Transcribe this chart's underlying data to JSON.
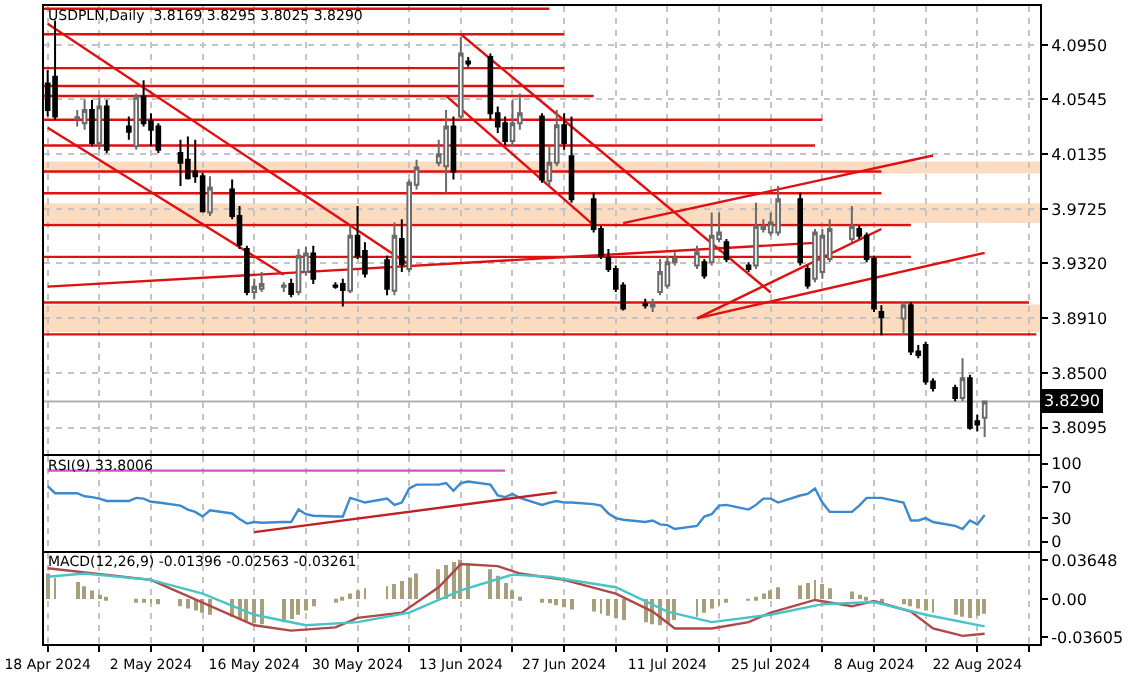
{
  "chart_data": [
    {
      "type": "candlestick",
      "title": "USDPLN,Daily  3.8169 3.8295 3.8025 3.8290",
      "grid": true,
      "tick_labels": "y",
      "x": [
        "2024-04-18",
        "2024-04-19",
        "2024-04-22",
        "2024-04-23",
        "2024-04-24",
        "2024-04-25",
        "2024-04-26",
        "2024-04-29",
        "2024-04-30",
        "2024-05-01",
        "2024-05-02",
        "2024-05-03",
        "2024-05-06",
        "2024-05-07",
        "2024-05-08",
        "2024-05-09",
        "2024-05-10",
        "2024-05-13",
        "2024-05-14",
        "2024-05-15",
        "2024-05-16",
        "2024-05-17",
        "2024-05-20",
        "2024-05-21",
        "2024-05-22",
        "2024-05-23",
        "2024-05-24",
        "2024-05-27",
        "2024-05-28",
        "2024-05-29",
        "2024-05-30",
        "2024-05-31",
        "2024-06-03",
        "2024-06-04",
        "2024-06-05",
        "2024-06-06",
        "2024-06-07",
        "2024-06-10",
        "2024-06-11",
        "2024-06-12",
        "2024-06-13",
        "2024-06-14",
        "2024-06-17",
        "2024-06-18",
        "2024-06-19",
        "2024-06-20",
        "2024-06-21",
        "2024-06-24",
        "2024-06-25",
        "2024-06-26",
        "2024-06-27",
        "2024-06-28",
        "2024-07-01",
        "2024-07-02",
        "2024-07-03",
        "2024-07-04",
        "2024-07-05",
        "2024-07-08",
        "2024-07-09",
        "2024-07-10",
        "2024-07-11",
        "2024-07-12",
        "2024-07-15",
        "2024-07-16",
        "2024-07-17",
        "2024-07-18",
        "2024-07-19",
        "2024-07-22",
        "2024-07-23",
        "2024-07-24",
        "2024-07-25",
        "2024-07-26",
        "2024-07-29",
        "2024-07-30",
        "2024-07-31",
        "2024-08-01",
        "2024-08-02",
        "2024-08-05",
        "2024-08-06",
        "2024-08-07",
        "2024-08-08",
        "2024-08-09",
        "2024-08-12",
        "2024-08-13",
        "2024-08-14",
        "2024-08-15",
        "2024-08-16",
        "2024-08-19",
        "2024-08-20",
        "2024-08-21",
        "2024-08-22",
        "2024-08-23"
      ],
      "ohlc": [
        [
          4.0662,
          4.0761,
          4.0415,
          4.0465
        ],
        [
          4.0712,
          4.1132,
          4.0391,
          4.0415
        ],
        [
          4.0401,
          4.0465,
          4.0341,
          4.0411
        ],
        [
          4.0366,
          4.0539,
          4.0317,
          4.0465
        ],
        [
          4.0465,
          4.0539,
          4.0193,
          4.0218
        ],
        [
          4.0218,
          4.0564,
          4.0168,
          4.049
        ],
        [
          4.049,
          4.0539,
          4.0144,
          4.0168
        ],
        [
          4.0341,
          4.0415,
          4.0243,
          4.0302
        ],
        [
          4.0193,
          4.0588,
          4.0168,
          4.0564
        ],
        [
          4.0564,
          4.0687,
          4.0341,
          4.0366
        ],
        [
          4.0381,
          4.044,
          4.0193,
          4.0317
        ],
        [
          4.0341,
          4.0366,
          4.0144,
          4.0168
        ],
        [
          4.0144,
          4.0243,
          3.9897,
          4.007
        ],
        [
          4.0094,
          4.0267,
          3.9946,
          3.9956
        ],
        [
          4.0005,
          4.0243,
          3.9921,
          3.9971
        ],
        [
          3.9971,
          3.9996,
          3.9699,
          3.9709
        ],
        [
          3.9699,
          3.9971,
          3.9674,
          3.9887
        ],
        [
          3.9872,
          3.9946,
          3.965,
          3.9674
        ],
        [
          3.9674,
          3.9749,
          3.9427,
          3.9462
        ],
        [
          3.9427,
          3.9452,
          3.9082,
          3.9106
        ],
        [
          3.9106,
          3.9205,
          3.9057,
          3.9146
        ],
        [
          3.9131,
          3.9255,
          3.9106,
          3.9166
        ],
        [
          3.9146,
          3.918,
          3.9106,
          3.9156
        ],
        [
          3.9166,
          3.9205,
          3.9067,
          3.9092
        ],
        [
          3.9106,
          3.9427,
          3.9082,
          3.9378
        ],
        [
          3.9255,
          3.9442,
          3.923,
          3.9393
        ],
        [
          3.9393,
          3.9452,
          3.9166,
          3.9205
        ],
        [
          3.9156,
          3.918,
          3.9131,
          3.9146
        ],
        [
          3.9166,
          3.9205,
          3.8998,
          3.9121
        ],
        [
          3.9116,
          3.96,
          3.9097,
          3.9526
        ],
        [
          3.9526,
          3.9749,
          3.9353,
          3.9378
        ],
        [
          3.9413,
          3.9477,
          3.9215,
          3.9245
        ],
        [
          3.9344,
          3.9378,
          3.9082,
          3.9131
        ],
        [
          3.9116,
          3.9625,
          3.9082,
          3.9526
        ],
        [
          3.9502,
          3.965,
          3.9255,
          3.9314
        ],
        [
          3.9279,
          3.9946,
          3.9255,
          3.9921
        ],
        [
          3.9907,
          4.0094,
          3.9872,
          4.0035
        ],
        [
          4.007,
          4.0243,
          4.0045,
          4.0134
        ],
        [
          4.0045,
          4.0465,
          3.9847,
          4.0341
        ],
        [
          4.0341,
          4.0415,
          3.9946,
          4.0005
        ],
        [
          4.0415,
          4.1008,
          4.0391,
          4.0885
        ],
        [
          4.0826,
          4.086,
          4.0786,
          4.0811
        ],
        [
          4.086,
          4.0885,
          4.0391,
          4.044
        ],
        [
          4.044,
          4.049,
          4.0292,
          4.0341
        ],
        [
          4.0366,
          4.0415,
          4.0203,
          4.0233
        ],
        [
          4.0233,
          4.0539,
          4.0193,
          4.0366
        ],
        [
          4.0366,
          4.0588,
          4.0317,
          4.044
        ],
        [
          4.0415,
          4.044,
          3.9921,
          3.9946
        ],
        [
          3.9936,
          4.0193,
          3.9897,
          4.007
        ],
        [
          4.007,
          4.0465,
          4.0045,
          4.0351
        ],
        [
          4.0351,
          4.044,
          4.0168,
          4.0218
        ],
        [
          4.0119,
          4.0415,
          3.9773,
          3.9798
        ],
        [
          3.9798,
          3.9847,
          3.9551,
          3.9576
        ],
        [
          3.9576,
          3.96,
          3.9353,
          3.9378
        ],
        [
          3.9363,
          3.9427,
          3.9255,
          3.9279
        ],
        [
          3.9279,
          3.9304,
          3.9106,
          3.9131
        ],
        [
          3.9156,
          3.918,
          3.8968,
          3.8983
        ],
        [
          3.9017,
          3.9057,
          3.8983,
          3.9008
        ],
        [
          3.8998,
          3.9057,
          3.8958,
          3.9017
        ],
        [
          3.9106,
          3.9353,
          3.9082,
          3.9255
        ],
        [
          3.9156,
          3.9378,
          3.9131,
          3.9329
        ],
        [
          3.9329,
          3.9403,
          3.9304,
          3.9353
        ],
        [
          3.9304,
          3.9452,
          3.9279,
          3.9403
        ],
        [
          3.9329,
          3.9353,
          3.9205,
          3.923
        ],
        [
          3.9329,
          3.9699,
          3.9304,
          3.9526
        ],
        [
          3.9502,
          3.9699,
          3.9477,
          3.9551
        ],
        [
          3.9477,
          3.9502,
          3.9329,
          3.9353
        ],
        [
          3.9304,
          3.9329,
          3.9255,
          3.9279
        ],
        [
          3.9304,
          3.9773,
          3.9279,
          3.96
        ],
        [
          3.9576,
          3.965,
          3.9551,
          3.96
        ],
        [
          3.9551,
          3.9699,
          3.9526,
          3.9625
        ],
        [
          3.9551,
          3.9897,
          3.9526,
          3.9798
        ],
        [
          3.9798,
          3.9847,
          3.9304,
          3.9329
        ],
        [
          3.9279,
          3.9304,
          3.9131,
          3.9156
        ],
        [
          3.9205,
          3.9576,
          3.918,
          3.9551
        ],
        [
          3.9255,
          3.9576,
          3.9205,
          3.9526
        ],
        [
          3.9353,
          3.965,
          3.9329,
          3.9576
        ],
        [
          3.9502,
          3.9749,
          3.9477,
          3.96
        ],
        [
          3.9576,
          3.96,
          3.9502,
          3.9526
        ],
        [
          3.9526,
          3.9551,
          3.9329,
          3.9353
        ],
        [
          3.9353,
          3.9378,
          3.8958,
          3.8983
        ],
        [
          3.8958,
          3.9008,
          3.8785,
          3.8919
        ],
        [
          3.8909,
          3.9032,
          3.8785,
          3.9008
        ],
        [
          3.9008,
          3.9032,
          3.8637,
          3.8662
        ],
        [
          3.8662,
          3.8711,
          3.8612,
          3.8637
        ],
        [
          3.8711,
          3.8736,
          3.8415,
          3.8439
        ],
        [
          3.8439,
          3.8464,
          3.8365,
          3.839
        ],
        [
          3.839,
          3.8415,
          3.8291,
          3.8316
        ],
        [
          3.8316,
          3.8612,
          3.8291,
          3.8464
        ],
        [
          3.8464,
          3.8489,
          3.8079,
          3.8094
        ],
        [
          3.8143,
          3.8192,
          3.8069,
          3.8118
        ],
        [
          3.8169,
          3.8295,
          3.8025,
          3.829
        ]
      ],
      "series": [
        {
          "type": "line",
          "color": "#e01010",
          "x": [
            "2024-04-17T12:00",
            "2024-06-25"
          ],
          "values": [
            4.122,
            4.122
          ]
        },
        {
          "type": "line",
          "color": "#e01010",
          "x": [
            "2024-04-17T12:00",
            "2024-06-27"
          ],
          "values": [
            4.1029,
            4.1029
          ]
        },
        {
          "type": "line",
          "color": "#e01010",
          "x": [
            "2024-04-17T12:00",
            "2024-06-27"
          ],
          "values": [
            4.0777,
            4.0777
          ]
        },
        {
          "type": "line",
          "color": "#e01010",
          "x": [
            "2024-04-17T12:00",
            "2024-06-27"
          ],
          "values": [
            4.0643,
            4.0643
          ]
        },
        {
          "type": "line",
          "color": "#e01010",
          "x": [
            "2024-04-17T12:00",
            "2024-07-01"
          ],
          "values": [
            4.0569,
            4.0569
          ]
        },
        {
          "type": "line",
          "color": "#e01010",
          "x": [
            "2024-04-17T12:00",
            "2024-08-01"
          ],
          "values": [
            4.0391,
            4.0391
          ]
        },
        {
          "type": "line",
          "color": "#e01010",
          "x": [
            "2024-04-17T12:00",
            "2024-07-31"
          ],
          "values": [
            4.0199,
            4.0199
          ]
        },
        {
          "type": "line",
          "color": "#e01010",
          "x": [
            "2024-04-17T12:00",
            "2024-08-09"
          ],
          "values": [
            4.0006,
            4.0006
          ]
        },
        {
          "type": "line",
          "color": "#e01010",
          "x": [
            "2024-04-17T12:00",
            "2024-08-09"
          ],
          "values": [
            3.9843,
            3.9843
          ]
        },
        {
          "type": "line",
          "color": "#e01010",
          "x": [
            "2024-04-17T12:00",
            "2024-08-13"
          ],
          "values": [
            3.9606,
            3.9606
          ]
        },
        {
          "type": "line",
          "color": "#e01010",
          "x": [
            "2024-04-17T12:00",
            "2024-08-13"
          ],
          "values": [
            3.9369,
            3.9369
          ]
        },
        {
          "type": "line",
          "color": "#e01010",
          "x": [
            "2024-04-17T12:00",
            "2024-08-29"
          ],
          "values": [
            3.9028,
            3.9028
          ]
        },
        {
          "type": "line",
          "color": "#e01010",
          "x": [
            "2024-04-17T12:00",
            "2024-08-30"
          ],
          "values": [
            3.8791,
            3.8791
          ]
        },
        {
          "type": "line",
          "color": "#e01010",
          "x": [
            "2024-04-18",
            "2024-06-06"
          ],
          "values": [
            4.1108,
            3.931
          ]
        },
        {
          "type": "line",
          "color": "#e01010",
          "x": [
            "2024-04-18",
            "2024-05-20"
          ],
          "values": [
            4.0332,
            3.9236
          ]
        },
        {
          "type": "line",
          "color": "#e01010",
          "x": [
            "2024-04-18",
            "2024-07-31"
          ],
          "values": [
            3.9147,
            3.9473
          ]
        },
        {
          "type": "line",
          "color": "#e01010",
          "x": [
            "2024-06-13",
            "2024-07-25"
          ],
          "values": [
            4.1029,
            3.9103
          ]
        },
        {
          "type": "line",
          "color": "#e01010",
          "x": [
            "2024-06-11",
            "2024-07-01"
          ],
          "values": [
            4.0569,
            3.9606
          ]
        },
        {
          "type": "line",
          "color": "#e01010",
          "x": [
            "2024-07-15",
            "2024-08-09"
          ],
          "values": [
            3.891,
            3.9577
          ]
        },
        {
          "type": "line",
          "color": "#e01010",
          "x": [
            "2024-07-15",
            "2024-08-23"
          ],
          "values": [
            3.891,
            3.9399
          ]
        },
        {
          "type": "line",
          "color": "#e01010",
          "x": [
            "2024-07-05",
            "2024-08-16"
          ],
          "values": [
            3.962,
            4.0125
          ]
        }
      ],
      "bands": [
        {
          "axis": "y",
          "from": 3.9991,
          "to": 4.008,
          "color": "#fbdcc0"
        },
        {
          "axis": "y",
          "from": 3.9621,
          "to": 3.9769,
          "color": "#fbdcc0"
        },
        {
          "axis": "y",
          "from": 3.8806,
          "to": 3.9013,
          "color": "#fbdcc0"
        }
      ],
      "ref_lines": [
        {
          "axis": "y",
          "value": 3.829,
          "label": "3.8290",
          "color": "#b0b0b0"
        }
      ],
      "xlim": [
        "2024-04-17T12:00",
        "2024-08-30T12:00"
      ],
      "xticks": [
        {
          "value": "2024-04-18",
          "label": null
        },
        {
          "value": "2024-04-25",
          "label": null
        },
        {
          "value": "2024-05-02",
          "label": null
        },
        {
          "value": "2024-05-09",
          "label": null
        },
        {
          "value": "2024-05-16",
          "label": null
        },
        {
          "value": "2024-05-23",
          "label": null
        },
        {
          "value": "2024-05-30",
          "label": null
        },
        {
          "value": "2024-06-06",
          "label": null
        },
        {
          "value": "2024-06-13",
          "label": null
        },
        {
          "value": "2024-06-20",
          "label": null
        },
        {
          "value": "2024-06-27",
          "label": null
        },
        {
          "value": "2024-07-04",
          "label": null
        },
        {
          "value": "2024-07-11",
          "label": null
        },
        {
          "value": "2024-07-18",
          "label": null
        },
        {
          "value": "2024-07-25",
          "label": null
        },
        {
          "value": "2024-08-01",
          "label": null
        },
        {
          "value": "2024-08-08",
          "label": null
        },
        {
          "value": "2024-08-15",
          "label": null
        },
        {
          "value": "2024-08-22",
          "label": null
        },
        {
          "value": "2024-08-29",
          "label": null
        }
      ],
      "ylim": [
        3.79,
        4.124
      ],
      "yticks": [
        {
          "value": 4.095,
          "label": "4.0950"
        },
        4.0545,
        4.0135,
        3.9725,
        {
          "value": 3.932,
          "label": "3.9320"
        },
        {
          "value": 3.891,
          "label": "3.8910"
        },
        {
          "value": 3.85,
          "label": "3.8500"
        },
        3.8095
      ]
    },
    {
      "type": "line",
      "title": "RSI(9) 33.8006",
      "grid": "x",
      "tick_labels": "y",
      "x": [
        "2024-04-18",
        "2024-04-19",
        "2024-04-22",
        "2024-04-23",
        "2024-04-24",
        "2024-04-25",
        "2024-04-26",
        "2024-04-29",
        "2024-04-30",
        "2024-05-01",
        "2024-05-02",
        "2024-05-03",
        "2024-05-06",
        "2024-05-07",
        "2024-05-08",
        "2024-05-09",
        "2024-05-10",
        "2024-05-13",
        "2024-05-14",
        "2024-05-15",
        "2024-05-16",
        "2024-05-17",
        "2024-05-20",
        "2024-05-21",
        "2024-05-22",
        "2024-05-23",
        "2024-05-24",
        "2024-05-27",
        "2024-05-28",
        "2024-05-29",
        "2024-05-30",
        "2024-05-31",
        "2024-06-03",
        "2024-06-04",
        "2024-06-05",
        "2024-06-06",
        "2024-06-07",
        "2024-06-10",
        "2024-06-11",
        "2024-06-12",
        "2024-06-13",
        "2024-06-14",
        "2024-06-17",
        "2024-06-18",
        "2024-06-19",
        "2024-06-20",
        "2024-06-21",
        "2024-06-24",
        "2024-06-25",
        "2024-06-26",
        "2024-06-27",
        "2024-06-28",
        "2024-07-01",
        "2024-07-02",
        "2024-07-03",
        "2024-07-04",
        "2024-07-05",
        "2024-07-08",
        "2024-07-09",
        "2024-07-10",
        "2024-07-11",
        "2024-07-12",
        "2024-07-15",
        "2024-07-16",
        "2024-07-17",
        "2024-07-18",
        "2024-07-19",
        "2024-07-22",
        "2024-07-23",
        "2024-07-24",
        "2024-07-25",
        "2024-07-26",
        "2024-07-29",
        "2024-07-30",
        "2024-07-31",
        "2024-08-01",
        "2024-08-02",
        "2024-08-05",
        "2024-08-06",
        "2024-08-07",
        "2024-08-08",
        "2024-08-09",
        "2024-08-12",
        "2024-08-13",
        "2024-08-14",
        "2024-08-15",
        "2024-08-16",
        "2024-08-19",
        "2024-08-20",
        "2024-08-21",
        "2024-08-22",
        "2024-08-23"
      ],
      "series": [
        {
          "type": "line",
          "color": "#3b8ad0",
          "values": [
            71,
            62,
            62,
            58,
            57,
            55,
            52,
            52,
            56,
            55,
            51,
            50,
            46,
            41,
            38,
            32,
            40,
            36,
            29,
            23,
            25,
            24,
            25,
            25,
            41,
            35,
            33,
            32,
            32,
            56,
            53,
            50,
            55,
            47,
            50,
            68,
            73,
            73,
            75,
            65,
            75,
            77,
            73,
            59,
            57,
            61,
            56,
            47,
            50,
            52,
            50,
            50,
            48,
            46,
            36,
            30,
            28,
            25,
            27,
            22,
            21,
            16,
            20,
            32,
            35,
            46,
            47,
            41,
            47,
            55,
            55,
            50,
            59,
            61,
            68,
            50,
            38,
            38,
            46,
            56,
            56,
            56,
            50,
            27,
            27,
            30,
            25,
            20,
            16,
            27,
            22,
            34
          ]
        },
        {
          "type": "line",
          "color": "#cc55cc",
          "x": [
            "2024-04-18",
            "2024-06-19"
          ],
          "values": [
            91,
            91
          ]
        },
        {
          "type": "line",
          "color": "#c02020",
          "x": [
            "2024-05-16",
            "2024-06-26"
          ],
          "values": [
            12,
            63
          ]
        }
      ],
      "xlim": [
        "2024-04-17T12:00",
        "2024-08-30T12:00"
      ],
      "xticks": [
        {
          "value": "2024-04-18",
          "label": null
        },
        {
          "value": "2024-04-25",
          "label": null
        },
        {
          "value": "2024-05-02",
          "label": null
        },
        {
          "value": "2024-05-09",
          "label": null
        },
        {
          "value": "2024-05-16",
          "label": null
        },
        {
          "value": "2024-05-23",
          "label": null
        },
        {
          "value": "2024-05-30",
          "label": null
        },
        {
          "value": "2024-06-06",
          "label": null
        },
        {
          "value": "2024-06-13",
          "label": null
        },
        {
          "value": "2024-06-20",
          "label": null
        },
        {
          "value": "2024-06-27",
          "label": null
        },
        {
          "value": "2024-07-04",
          "label": null
        },
        {
          "value": "2024-07-11",
          "label": null
        },
        {
          "value": "2024-07-18",
          "label": null
        },
        {
          "value": "2024-07-25",
          "label": null
        },
        {
          "value": "2024-08-01",
          "label": null
        },
        {
          "value": "2024-08-08",
          "label": null
        },
        {
          "value": "2024-08-15",
          "label": null
        },
        {
          "value": "2024-08-22",
          "label": null
        },
        {
          "value": "2024-08-29",
          "label": null
        }
      ],
      "ylim": [
        -12,
        110
      ],
      "yticks": [
        100,
        70,
        30,
        0
      ]
    },
    {
      "type": "bar",
      "title": "MACD(12,26,9) -0.01396 -0.02563 -0.03261",
      "grid": "x",
      "x": [
        "2024-04-18",
        "2024-04-19",
        "2024-04-22",
        "2024-04-23",
        "2024-04-24",
        "2024-04-25",
        "2024-04-26",
        "2024-04-29",
        "2024-04-30",
        "2024-05-01",
        "2024-05-02",
        "2024-05-03",
        "2024-05-06",
        "2024-05-07",
        "2024-05-08",
        "2024-05-09",
        "2024-05-10",
        "2024-05-13",
        "2024-05-14",
        "2024-05-15",
        "2024-05-16",
        "2024-05-17",
        "2024-05-20",
        "2024-05-21",
        "2024-05-22",
        "2024-05-23",
        "2024-05-24",
        "2024-05-27",
        "2024-05-28",
        "2024-05-29",
        "2024-05-30",
        "2024-05-31",
        "2024-06-03",
        "2024-06-04",
        "2024-06-05",
        "2024-06-06",
        "2024-06-07",
        "2024-06-10",
        "2024-06-11",
        "2024-06-12",
        "2024-06-13",
        "2024-06-14",
        "2024-06-17",
        "2024-06-18",
        "2024-06-19",
        "2024-06-20",
        "2024-06-21",
        "2024-06-24",
        "2024-06-25",
        "2024-06-26",
        "2024-06-27",
        "2024-06-28",
        "2024-07-01",
        "2024-07-02",
        "2024-07-03",
        "2024-07-04",
        "2024-07-05",
        "2024-07-08",
        "2024-07-09",
        "2024-07-10",
        "2024-07-11",
        "2024-07-12",
        "2024-07-15",
        "2024-07-16",
        "2024-07-17",
        "2024-07-18",
        "2024-07-19",
        "2024-07-22",
        "2024-07-23",
        "2024-07-24",
        "2024-07-25",
        "2024-07-26",
        "2024-07-29",
        "2024-07-30",
        "2024-07-31",
        "2024-08-01",
        "2024-08-02",
        "2024-08-05",
        "2024-08-06",
        "2024-08-07",
        "2024-08-08",
        "2024-08-09",
        "2024-08-12",
        "2024-08-13",
        "2024-08-14",
        "2024-08-15",
        "2024-08-16",
        "2024-08-19",
        "2024-08-20",
        "2024-08-21",
        "2024-08-22",
        "2024-08-23"
      ],
      "series": [
        {
          "type": "bar",
          "color": "#a8a07c",
          "values": [
            0.024,
            0.02,
            0.016,
            0.012,
            0.008,
            0.004,
            0.002,
            0,
            -0.002,
            -0.003,
            -0.004,
            -0.005,
            -0.007,
            -0.009,
            -0.011,
            -0.013,
            -0.015,
            -0.017,
            -0.019,
            -0.021,
            -0.023,
            -0.024,
            -0.022,
            -0.019,
            -0.015,
            -0.011,
            -0.007,
            -0.003,
            0.002,
            0.005,
            0.008,
            0.01,
            0.012,
            0.014,
            0.017,
            0.02,
            0.024,
            0.028,
            0.032,
            0.035,
            0.037,
            0.034,
            0.028,
            0.022,
            0.015,
            0.008,
            0.002,
            -0.002,
            -0.004,
            -0.006,
            -0.008,
            -0.01,
            -0.012,
            -0.014,
            -0.016,
            -0.018,
            -0.02,
            -0.022,
            -0.024,
            -0.025,
            -0.023,
            -0.02,
            -0.017,
            -0.013,
            -0.009,
            -0.006,
            -0.003,
            -0.001,
            0.002,
            0.005,
            0.008,
            0.011,
            0.013,
            0.015,
            0.018,
            0.014,
            0.01,
            0.007,
            0.004,
            0.002,
            0,
            -0.003,
            -0.005,
            -0.007,
            -0.009,
            -0.011,
            -0.013,
            -0.015,
            -0.017,
            -0.018,
            -0.016,
            -0.014
          ]
        },
        {
          "type": "line",
          "color": "#b04848",
          "x": [
            "2024-04-18",
            "2024-05-02",
            "2024-05-16",
            "2024-05-21",
            "2024-05-27",
            "2024-05-30",
            "2024-06-05",
            "2024-06-10",
            "2024-06-13",
            "2024-06-18",
            "2024-06-21",
            "2024-06-27",
            "2024-07-04",
            "2024-07-09",
            "2024-07-12",
            "2024-07-17",
            "2024-07-22",
            "2024-07-25",
            "2024-07-31",
            "2024-08-05",
            "2024-08-08",
            "2024-08-13",
            "2024-08-16",
            "2024-08-20",
            "2024-08-23"
          ],
          "values": [
            0.029,
            0.018,
            -0.025,
            -0.03,
            -0.027,
            -0.018,
            -0.013,
            0.011,
            0.033,
            0.031,
            0.024,
            0.018,
            0.005,
            -0.012,
            -0.028,
            -0.028,
            -0.022,
            -0.013,
            -0.001,
            -0.007,
            -0.002,
            -0.012,
            -0.028,
            -0.035,
            -0.033
          ]
        },
        {
          "type": "line",
          "color": "#48c4c8",
          "x": [
            "2024-04-18",
            "2024-04-23",
            "2024-05-02",
            "2024-05-09",
            "2024-05-16",
            "2024-05-23",
            "2024-05-30",
            "2024-06-06",
            "2024-06-13",
            "2024-06-20",
            "2024-06-25",
            "2024-07-04",
            "2024-07-11",
            "2024-07-17",
            "2024-07-25",
            "2024-08-01",
            "2024-08-08",
            "2024-08-15",
            "2024-08-23"
          ],
          "values": [
            0.021,
            0.024,
            0.018,
            0.005,
            -0.015,
            -0.025,
            -0.022,
            -0.013,
            0.008,
            0.023,
            0.021,
            0.011,
            -0.012,
            -0.022,
            -0.015,
            -0.005,
            -0.003,
            -0.015,
            -0.026
          ]
        }
      ],
      "xlim": [
        "2024-04-17T12:00",
        "2024-08-30T12:00"
      ],
      "xticks": [
        {
          "value": "2024-04-18",
          "label": "18 Apr 2024"
        },
        {
          "value": "2024-04-25",
          "label": null
        },
        {
          "value": "2024-05-02",
          "label": "2 May 2024"
        },
        {
          "value": "2024-05-09",
          "label": null
        },
        {
          "value": "2024-05-16",
          "label": "16 May 2024"
        },
        {
          "value": "2024-05-23",
          "label": null
        },
        {
          "value": "2024-05-30",
          "label": "30 May 2024"
        },
        {
          "value": "2024-06-06",
          "label": null
        },
        {
          "value": "2024-06-13",
          "label": "13 Jun 2024"
        },
        {
          "value": "2024-06-20",
          "label": null
        },
        {
          "value": "2024-06-27",
          "label": "27 Jun 2024"
        },
        {
          "value": "2024-07-04",
          "label": null
        },
        {
          "value": "2024-07-11",
          "label": "11 Jul 2024"
        },
        {
          "value": "2024-07-18",
          "label": null
        },
        {
          "value": "2024-07-25",
          "label": "25 Jul 2024"
        },
        {
          "value": "2024-08-01",
          "label": null
        },
        {
          "value": "2024-08-08",
          "label": "8 Aug 2024"
        },
        {
          "value": "2024-08-15",
          "label": null
        },
        {
          "value": "2024-08-22",
          "label": "22 Aug 2024"
        },
        {
          "value": "2024-08-29",
          "label": null
        }
      ],
      "ylim": [
        -0.0427,
        0.0436
      ],
      "yticks": [
        0.03648,
        {
          "value": 0,
          "label": "0.00"
        },
        -0.03605
      ]
    }
  ]
}
